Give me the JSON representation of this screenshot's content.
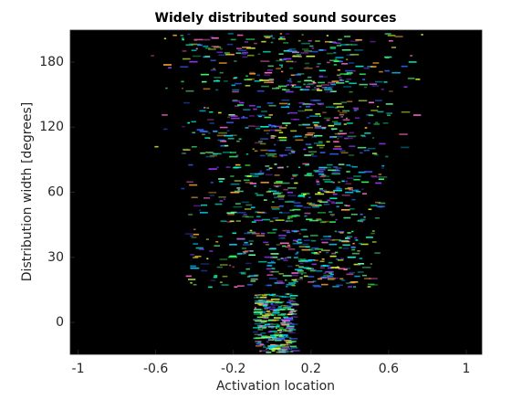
{
  "chart_data": {
    "type": "heatmap",
    "title": "Widely distributed sound sources",
    "x_label": "Activation location",
    "y_label": "Distribution width [degrees]",
    "xlim": [
      -1.04,
      1.08
    ],
    "xticks": [
      -1,
      -0.6,
      -0.2,
      0.2,
      0.6,
      1
    ],
    "ylim": [
      -0.49,
      4.49
    ],
    "yticks": [
      {
        "value": 0,
        "label": "0"
      },
      {
        "value": 1,
        "label": "30"
      },
      {
        "value": 2,
        "label": "60"
      },
      {
        "value": 3,
        "label": "120"
      },
      {
        "value": 4,
        "label": "180"
      }
    ],
    "background": "#000000"
  }
}
